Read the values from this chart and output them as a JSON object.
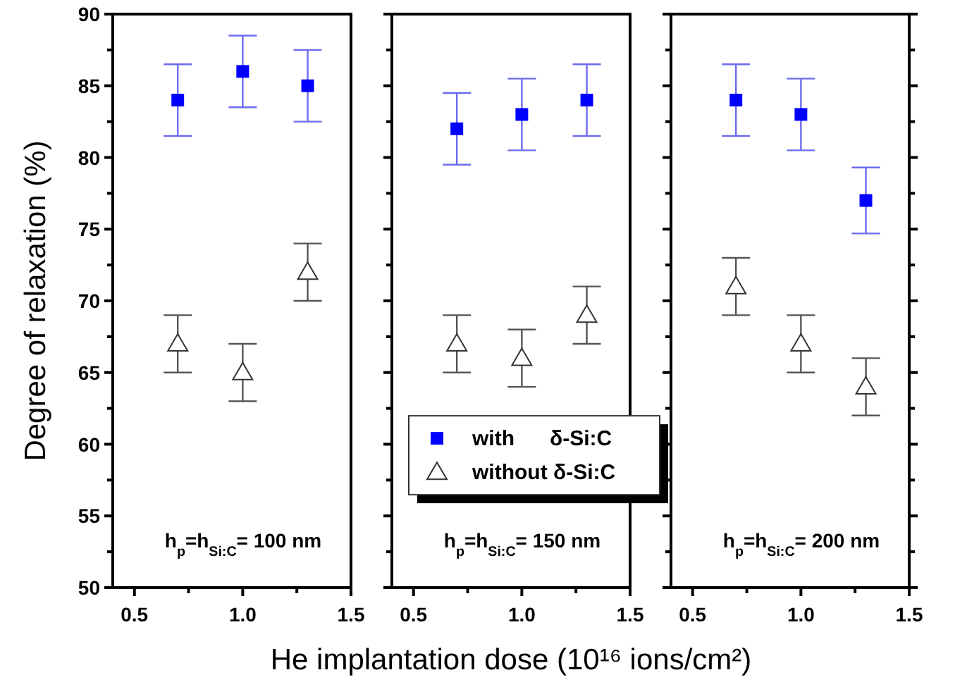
{
  "chart_data": [
    {
      "type": "scatter",
      "ylabel": "Degree of relaxation (%)",
      "x": [
        0.7,
        1.0,
        1.3
      ],
      "xlim": [
        0.4,
        1.5
      ],
      "xticks": [
        {
          "value": 0.5,
          "label": "0.5"
        },
        {
          "value": 0.75,
          "label": null
        },
        {
          "value": 1,
          "label": "1.0"
        },
        {
          "value": 1.25,
          "label": null
        },
        {
          "value": 1.5,
          "label": "1.5"
        }
      ],
      "ylim": [
        50,
        90
      ],
      "yticks": [
        50,
        {
          "value": 52.5,
          "label": null
        },
        55,
        {
          "value": 57.5,
          "label": null
        },
        60,
        {
          "value": 62.5,
          "label": null
        },
        65,
        {
          "value": 67.5,
          "label": null
        },
        70,
        {
          "value": 72.5,
          "label": null
        },
        75,
        {
          "value": 77.5,
          "label": null
        },
        80,
        {
          "value": 82.5,
          "label": null
        },
        85,
        {
          "value": 87.5,
          "label": null
        },
        90
      ],
      "grid": false,
      "legend": false,
      "annotations": [
        "h$_{p}$=h$_{Si:C}$= 100 nm"
      ],
      "series": [
        {
          "color": "#0000ff",
          "marker": "square",
          "values": [
            84,
            86,
            85
          ],
          "errors": [
            2.5,
            2.5,
            2.5
          ]
        },
        {
          "color": "#333333",
          "marker": "triangle",
          "values": [
            67,
            65,
            72
          ],
          "errors": [
            2,
            2,
            2
          ]
        }
      ]
    },
    {
      "type": "scatter",
      "xlabel": "He implantation dose (10¹⁶ ions/cm²)",
      "x": [
        0.7,
        1.0,
        1.3
      ],
      "xlim": [
        0.4,
        1.5
      ],
      "xticks": [
        {
          "value": 0.5,
          "label": "0.5"
        },
        {
          "value": 0.75,
          "label": null
        },
        {
          "value": 1,
          "label": "1.0"
        },
        {
          "value": 1.25,
          "label": null
        },
        {
          "value": 1.5,
          "label": "1.5"
        }
      ],
      "ylim": [
        50,
        90
      ],
      "yticks": [
        50,
        {
          "value": 52.5,
          "label": null
        },
        55,
        {
          "value": 57.5,
          "label": null
        },
        60,
        {
          "value": 62.5,
          "label": null
        },
        65,
        {
          "value": 67.5,
          "label": null
        },
        70,
        {
          "value": 72.5,
          "label": null
        },
        75,
        {
          "value": 77.5,
          "label": null
        },
        80,
        {
          "value": 82.5,
          "label": null
        },
        85,
        {
          "value": 87.5,
          "label": null
        },
        90
      ],
      "tick_labels": "x",
      "grid": false,
      "legend": "bottom right",
      "annotations": [
        "h$_{p}$=h$_{Si:C}$= 150 nm"
      ],
      "series": [
        {
          "name": "with      δ-Si:C",
          "color": "#0000ff",
          "marker": "square",
          "values": [
            82,
            83,
            84
          ],
          "errors": [
            2.5,
            2.5,
            2.5
          ]
        },
        {
          "name": "without δ-Si:C",
          "color": "#333333",
          "marker": "triangle",
          "values": [
            67,
            66,
            69
          ],
          "errors": [
            2,
            2,
            2
          ]
        }
      ]
    },
    {
      "type": "scatter",
      "x": [
        0.7,
        1.0,
        1.3
      ],
      "xlim": [
        0.4,
        1.5
      ],
      "xticks": [
        {
          "value": 0.5,
          "label": "0.5"
        },
        {
          "value": 0.75,
          "label": null
        },
        {
          "value": 1,
          "label": "1.0"
        },
        {
          "value": 1.25,
          "label": null
        },
        {
          "value": 1.5,
          "label": "1.5"
        }
      ],
      "ylim": [
        50,
        90
      ],
      "yticks": [
        50,
        {
          "value": 52.5,
          "label": null
        },
        55,
        {
          "value": 57.5,
          "label": null
        },
        60,
        {
          "value": 62.5,
          "label": null
        },
        65,
        {
          "value": 67.5,
          "label": null
        },
        70,
        {
          "value": 72.5,
          "label": null
        },
        75,
        {
          "value": 77.5,
          "label": null
        },
        80,
        {
          "value": 82.5,
          "label": null
        },
        85,
        {
          "value": 87.5,
          "label": null
        },
        90
      ],
      "tick_labels": "x",
      "grid": false,
      "legend": false,
      "annotations": [
        "h$_{p}$=h$_{Si:C}$= 200 nm"
      ],
      "series": [
        {
          "color": "#0000ff",
          "marker": "square",
          "values": [
            84,
            83,
            77
          ],
          "errors": [
            2.5,
            2.5,
            2.3
          ]
        },
        {
          "color": "#333333",
          "marker": "triangle",
          "values": [
            71,
            67,
            64
          ],
          "errors": [
            2,
            2,
            2
          ]
        }
      ]
    }
  ]
}
